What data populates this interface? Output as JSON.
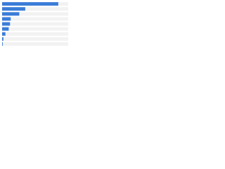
{
  "chart_data": {
    "type": "bar",
    "orientation": "horizontal",
    "categories": [
      null,
      null,
      null,
      null,
      null,
      null,
      null,
      null,
      null
    ],
    "values": [
      85,
      35,
      26,
      13,
      12,
      10,
      5,
      2,
      1
    ],
    "color": "#3b7dd8",
    "xlim": [
      0,
      100
    ]
  }
}
